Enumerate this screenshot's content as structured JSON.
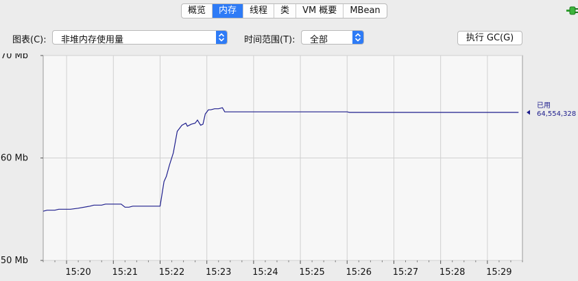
{
  "tabs": [
    {
      "label": "概览",
      "active": false
    },
    {
      "label": "内存",
      "active": true
    },
    {
      "label": "线程",
      "active": false
    },
    {
      "label": "类",
      "active": false
    },
    {
      "label": "VM 概要",
      "active": false
    },
    {
      "label": "MBean",
      "active": false
    }
  ],
  "controls": {
    "chart_label": "图表(C):",
    "chart_value": "非堆内存使用量",
    "range_label": "时间范围(T):",
    "range_value": "全部",
    "gc_button": "执行 GC(G)"
  },
  "colors": {
    "accent": "#2e7bf6",
    "series": "#1c1c8c",
    "plot_bg": "#f7f7f7",
    "grid": "#d0d0d0"
  },
  "chart_data": {
    "type": "line",
    "title": "",
    "xlabel": "",
    "ylabel": "",
    "y_unit": "Mb",
    "ylim": [
      50,
      70
    ],
    "xlim": [
      "15:19:30",
      "15:29:45"
    ],
    "y_ticks": [
      {
        "v": 50,
        "label": "50 Mb"
      },
      {
        "v": 60,
        "label": "60 Mb"
      },
      {
        "v": 70,
        "label": "70 Mb"
      }
    ],
    "x_ticks": [
      "15:20",
      "15:21",
      "15:22",
      "15:23",
      "15:24",
      "15:25",
      "15:26",
      "15:27",
      "15:28",
      "15:29"
    ],
    "grid": true,
    "series": [
      {
        "name": "已用",
        "color": "#1c1c8c",
        "current_value": "64,554,328",
        "points": [
          [
            "15:19:30",
            54.8
          ],
          [
            "15:19:35",
            54.9
          ],
          [
            "15:19:45",
            54.9
          ],
          [
            "15:19:50",
            55.0
          ],
          [
            "15:20:05",
            55.0
          ],
          [
            "15:20:15",
            55.1
          ],
          [
            "15:20:30",
            55.3
          ],
          [
            "15:20:35",
            55.4
          ],
          [
            "15:20:45",
            55.4
          ],
          [
            "15:20:50",
            55.5
          ],
          [
            "15:21:05",
            55.5
          ],
          [
            "15:21:10",
            55.5
          ],
          [
            "15:21:15",
            55.2
          ],
          [
            "15:21:20",
            55.2
          ],
          [
            "15:21:25",
            55.3
          ],
          [
            "15:21:40",
            55.3
          ],
          [
            "15:21:55",
            55.3
          ],
          [
            "15:22:00",
            55.3
          ],
          [
            "15:22:05",
            57.7
          ],
          [
            "15:22:08",
            58.2
          ],
          [
            "15:22:12",
            59.3
          ],
          [
            "15:22:17",
            60.5
          ],
          [
            "15:22:22",
            62.6
          ],
          [
            "15:22:28",
            63.2
          ],
          [
            "15:22:33",
            63.4
          ],
          [
            "15:22:35",
            63.1
          ],
          [
            "15:22:40",
            63.3
          ],
          [
            "15:22:45",
            63.4
          ],
          [
            "15:22:48",
            63.7
          ],
          [
            "15:22:52",
            63.2
          ],
          [
            "15:22:55",
            63.3
          ],
          [
            "15:22:58",
            64.3
          ],
          [
            "15:23:02",
            64.7
          ],
          [
            "15:23:05",
            64.7
          ],
          [
            "15:23:10",
            64.8
          ],
          [
            "15:23:15",
            64.8
          ],
          [
            "15:23:20",
            64.9
          ],
          [
            "15:23:23",
            64.5
          ],
          [
            "15:23:30",
            64.5
          ],
          [
            "15:24:00",
            64.5
          ],
          [
            "15:25:00",
            64.5
          ],
          [
            "15:26:00",
            64.5
          ],
          [
            "15:26:03",
            64.45
          ],
          [
            "15:27:00",
            64.45
          ],
          [
            "15:28:00",
            64.45
          ],
          [
            "15:29:00",
            64.45
          ],
          [
            "15:29:40",
            64.45
          ]
        ]
      }
    ]
  }
}
